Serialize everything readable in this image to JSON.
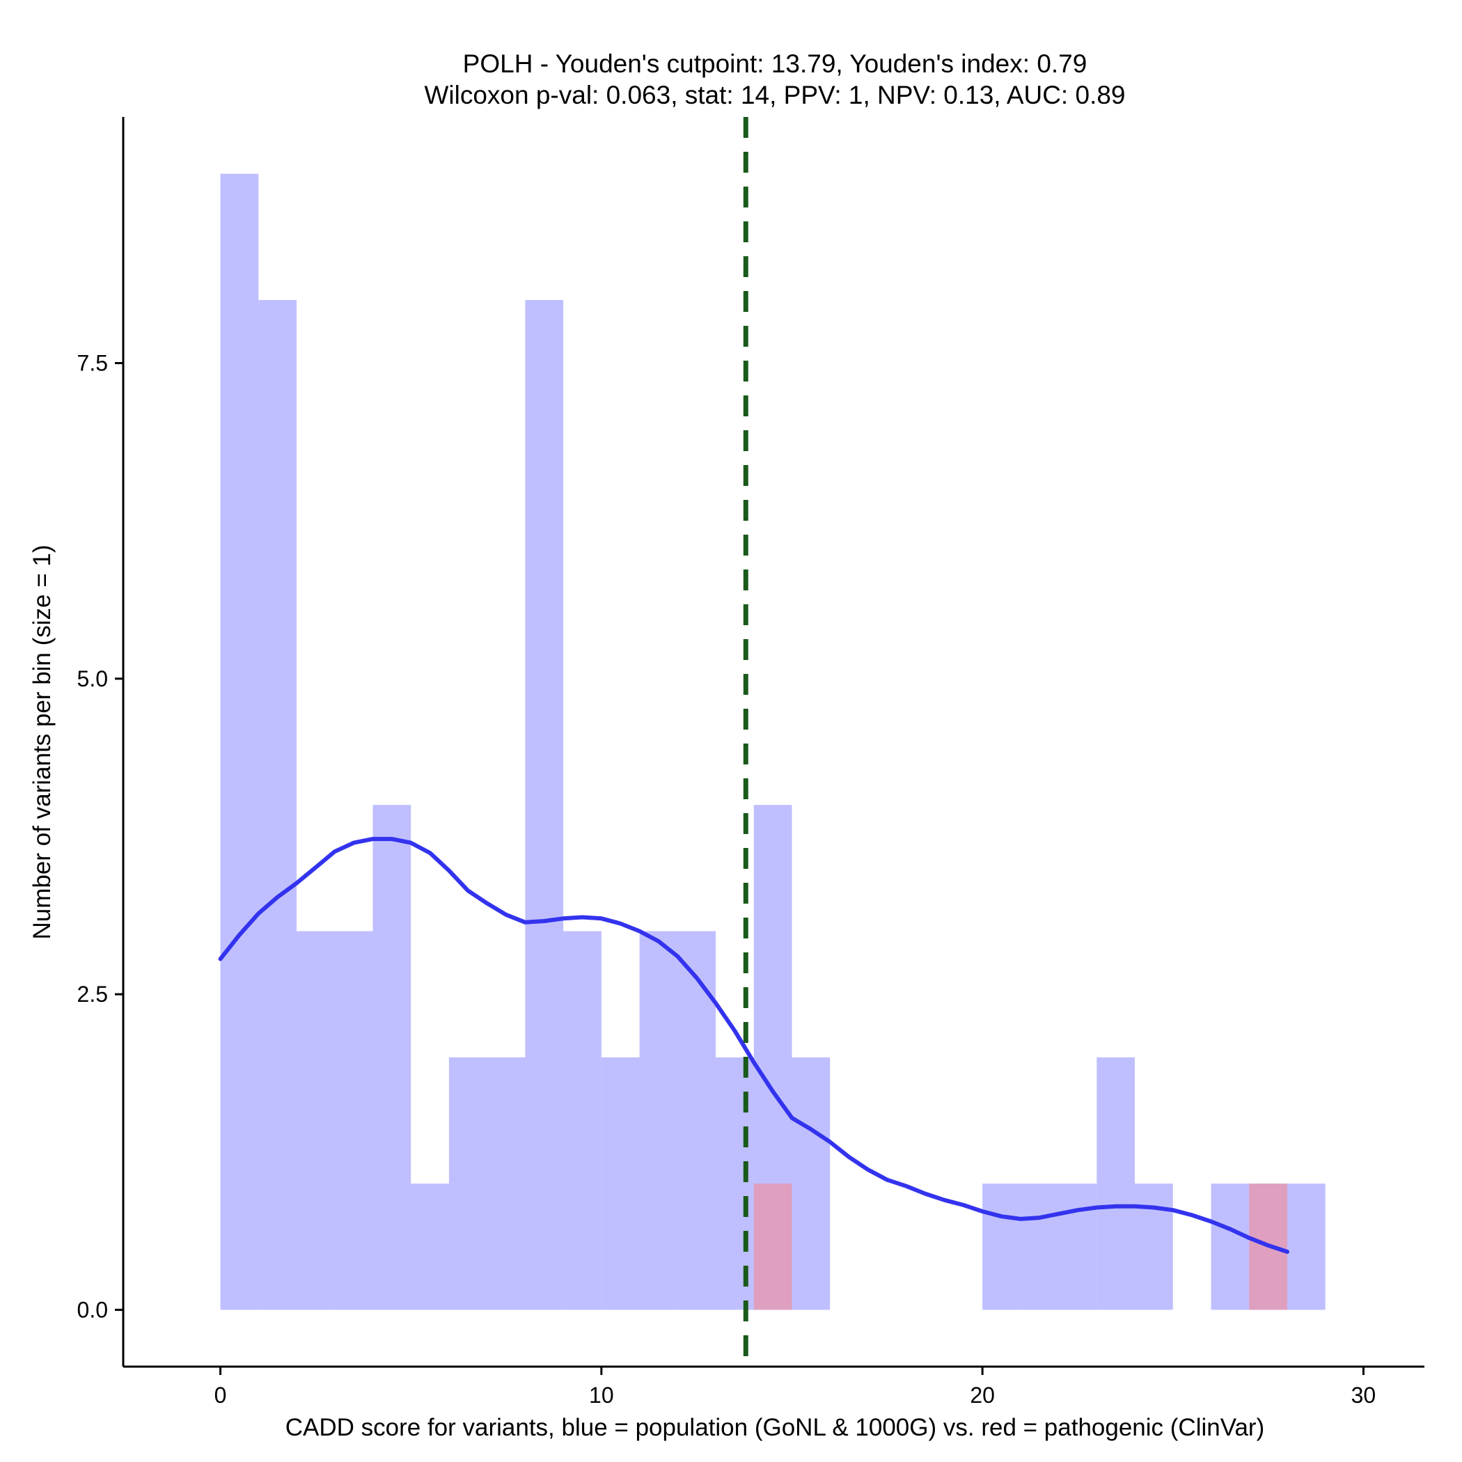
{
  "chart_data": {
    "type": "histogram",
    "title": "POLH - Youden's cutpoint: 13.79, Youden's index: 0.79",
    "subtitle": "Wilcoxon p-val: 0.063, stat: 14, PPV: 1, NPV: 0.13, AUC: 0.89",
    "xlabel": "CADD score for variants, blue = population (GoNL & 1000G) vs. red = pathogenic (ClinVar)",
    "ylabel": "Number of variants per bin (size = 1)",
    "xlim": [
      -2.55,
      31.6
    ],
    "ylim": [
      -0.45,
      9.45
    ],
    "x_ticks": [
      {
        "value": 0,
        "label": "0"
      },
      {
        "value": 10,
        "label": "10"
      },
      {
        "value": 20,
        "label": "20"
      },
      {
        "value": 30,
        "label": "30"
      }
    ],
    "y_ticks": [
      {
        "value": 0,
        "label": "0.0"
      },
      {
        "value": 2.5,
        "label": "2.5"
      },
      {
        "value": 5,
        "label": "5.0"
      },
      {
        "value": 7.5,
        "label": "7.5"
      }
    ],
    "bin_width": 1,
    "series": [
      {
        "name": "population",
        "color": "#8080ff",
        "bins": [
          {
            "x0": 0,
            "count": 9
          },
          {
            "x0": 1,
            "count": 8
          },
          {
            "x0": 2,
            "count": 3
          },
          {
            "x0": 3,
            "count": 3
          },
          {
            "x0": 4,
            "count": 4
          },
          {
            "x0": 5,
            "count": 1
          },
          {
            "x0": 6,
            "count": 2
          },
          {
            "x0": 7,
            "count": 2
          },
          {
            "x0": 8,
            "count": 8
          },
          {
            "x0": 9,
            "count": 3
          },
          {
            "x0": 10,
            "count": 2
          },
          {
            "x0": 11,
            "count": 3
          },
          {
            "x0": 12,
            "count": 3
          },
          {
            "x0": 13,
            "count": 2
          },
          {
            "x0": 14,
            "count": 4
          },
          {
            "x0": 15,
            "count": 2
          },
          {
            "x0": 20,
            "count": 1
          },
          {
            "x0": 21,
            "count": 1
          },
          {
            "x0": 22,
            "count": 1
          },
          {
            "x0": 23,
            "count": 2
          },
          {
            "x0": 24,
            "count": 1
          },
          {
            "x0": 26,
            "count": 1
          },
          {
            "x0": 27,
            "count": 1
          },
          {
            "x0": 28,
            "count": 1
          }
        ]
      },
      {
        "name": "pathogenic",
        "color": "#ff8080",
        "bins": [
          {
            "x0": 14,
            "count": 1
          },
          {
            "x0": 27,
            "count": 1
          }
        ]
      }
    ],
    "density_curve": {
      "name": "population density",
      "color": "#3333ee",
      "x": [
        0,
        0.5,
        1,
        1.5,
        2,
        2.6,
        3,
        3.5,
        4,
        4.5,
        5,
        5.5,
        6,
        6.5,
        7,
        7.5,
        8,
        8.5,
        9,
        9.5,
        10,
        10.5,
        11,
        11.5,
        12,
        12.5,
        13,
        13.5,
        14,
        14.5,
        15,
        15.5,
        16,
        16.5,
        17,
        17.5,
        18,
        18.5,
        19,
        19.5,
        20,
        20.5,
        21,
        21.5,
        22,
        22.5,
        23,
        23.5,
        24,
        24.5,
        25,
        25.5,
        26,
        26.5,
        27,
        27.5,
        28
      ],
      "y": [
        2.78,
        2.97,
        3.14,
        3.27,
        3.38,
        3.53,
        3.63,
        3.7,
        3.73,
        3.73,
        3.7,
        3.62,
        3.48,
        3.32,
        3.22,
        3.13,
        3.07,
        3.08,
        3.1,
        3.11,
        3.1,
        3.06,
        3.0,
        2.92,
        2.8,
        2.63,
        2.43,
        2.21,
        1.96,
        1.73,
        1.52,
        1.43,
        1.33,
        1.21,
        1.11,
        1.03,
        0.98,
        0.92,
        0.87,
        0.83,
        0.78,
        0.74,
        0.72,
        0.73,
        0.76,
        0.79,
        0.81,
        0.82,
        0.82,
        0.81,
        0.79,
        0.75,
        0.7,
        0.64,
        0.57,
        0.51,
        0.46
      ]
    },
    "cutpoint_line": {
      "x": 13.79,
      "color": "#1a5a1a",
      "style": "dashed"
    },
    "grid": false,
    "legend": "none"
  }
}
